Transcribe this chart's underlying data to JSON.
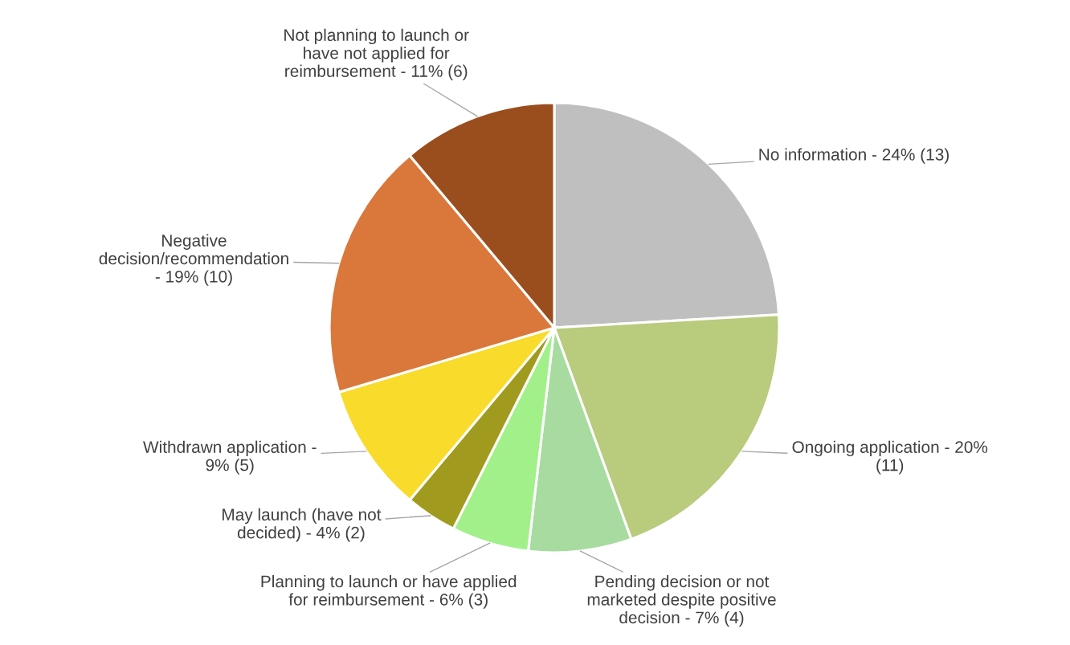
{
  "chart_data": {
    "type": "pie",
    "categories": [
      "No information - 24% (13)",
      "Ongoing application - 20%\n(11)",
      "Pending decision or not\nmarketed despite positive\ndecision - 7% (4)",
      "Planning to launch or have applied\nfor reimbursement - 6% (3)",
      "May launch (have not\ndecided) - 4% (2)",
      "Withdrawn application -\n9% (5)",
      "Negative\ndecision/recommendation\n- 19% (10)",
      "Not planning to launch or\nhave not applied for\nreimbursement - 11% (6)"
    ],
    "values": [
      13,
      11,
      4,
      3,
      2,
      5,
      10,
      6
    ],
    "colors": [
      "#bfbfbf",
      "#b9cb7c",
      "#a8dba0",
      "#a2f08a",
      "#a09b1e",
      "#f9db2b",
      "#da783c",
      "#9a4d1d"
    ]
  }
}
